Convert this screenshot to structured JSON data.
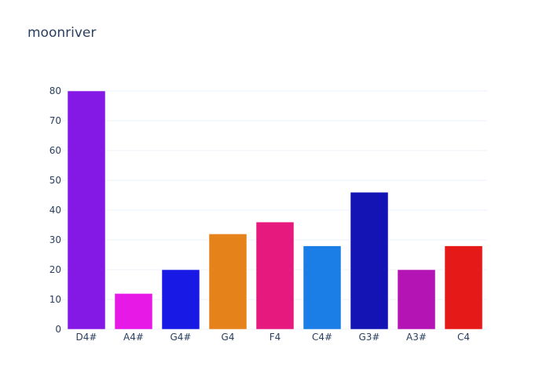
{
  "chart_data": {
    "type": "bar",
    "title": "moonriver",
    "xlabel": "",
    "ylabel": "",
    "categories": [
      "D4#",
      "A4#",
      "G4#",
      "G4",
      "F4",
      "C4#",
      "G3#",
      "A3#",
      "C4"
    ],
    "values": [
      80,
      12,
      20,
      32,
      36,
      28,
      46,
      20,
      28
    ],
    "colors": [
      "#8419e6",
      "#e619e6",
      "#1919e6",
      "#e6821a",
      "#e6197f",
      "#1a7ee6",
      "#1414b4",
      "#b414b4",
      "#e61919"
    ],
    "ylim": [
      0,
      80
    ],
    "yticks": [
      0,
      10,
      20,
      30,
      40,
      50,
      60,
      70,
      80
    ],
    "grid": true,
    "legend": "none"
  }
}
